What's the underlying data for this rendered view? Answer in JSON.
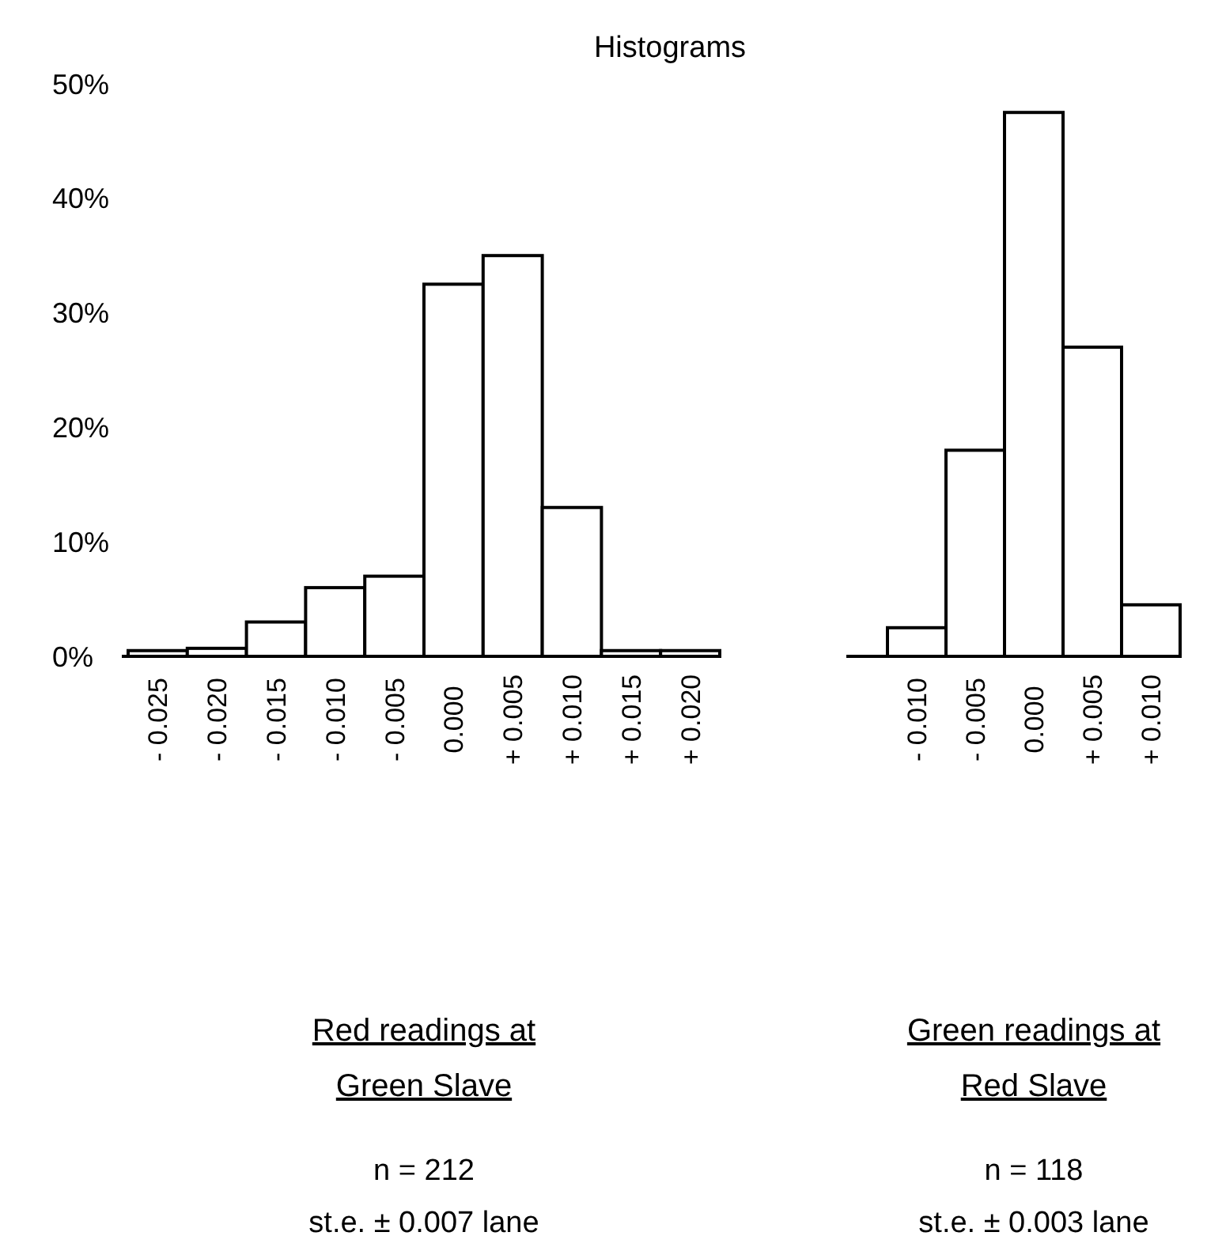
{
  "chart_data": [
    {
      "type": "bar",
      "title": "Histograms",
      "categories": [
        "- 0.025",
        "- 0.020",
        "- 0.015",
        "- 0.010",
        "- 0.005",
        "0.000",
        "+ 0.005",
        "+ 0.010",
        "+ 0.015",
        "+ 0.020"
      ],
      "values": [
        0.5,
        0.7,
        3,
        6,
        7,
        32.5,
        35,
        13,
        0.5,
        0.5
      ],
      "color": "#ffffff",
      "ylim": [
        0,
        50
      ],
      "yticks": [
        {
          "value": 0,
          "label": "0%"
        },
        {
          "value": 10,
          "label": "10%"
        },
        {
          "value": 20,
          "label": "20%"
        },
        {
          "value": 30,
          "label": "30%"
        },
        {
          "value": 40,
          "label": "40%"
        },
        {
          "value": 50,
          "label": "50%"
        }
      ],
      "grid": false,
      "xlabel": "Red readings at Green Slave",
      "annotations": [
        "n = 212",
        "st.e. ± 0.007 lane"
      ]
    },
    {
      "type": "bar",
      "categories": [
        "- 0.010",
        "- 0.005",
        "0.000",
        "+ 0.005",
        "+ 0.010"
      ],
      "values": [
        2.5,
        18,
        47.5,
        27,
        4.5
      ],
      "color": "#ffffff",
      "ylim": [
        0,
        50
      ],
      "tick_labels": "x",
      "grid": false,
      "xlabel": "Green readings at Red Slave",
      "annotations": [
        "n = 118",
        "st.e. ± 0.003 lane"
      ]
    }
  ]
}
